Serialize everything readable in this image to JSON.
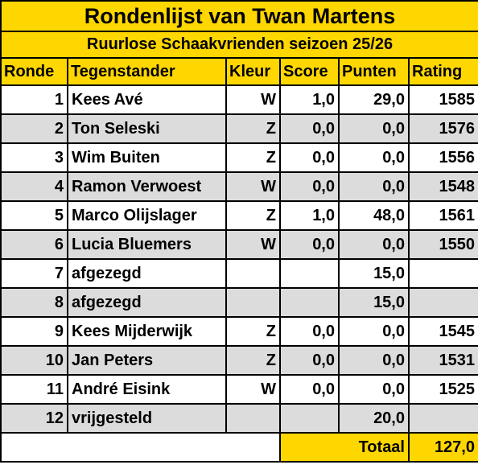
{
  "title": "Rondenlijst van Twan Martens",
  "subtitle": "Ruurlose Schaakvrienden seizoen 25/26",
  "columns": {
    "ronde": "Ronde",
    "tegenstander": "Tegenstander",
    "kleur": "Kleur",
    "score": "Score",
    "punten": "Punten",
    "rating": "Rating"
  },
  "rows": [
    {
      "ronde": "1",
      "tegenstander": "Kees Avé",
      "kleur": "W",
      "score": "1,0",
      "punten": "29,0",
      "rating": "1585"
    },
    {
      "ronde": "2",
      "tegenstander": "Ton Seleski",
      "kleur": "Z",
      "score": "0,0",
      "punten": "0,0",
      "rating": "1576"
    },
    {
      "ronde": "3",
      "tegenstander": "Wim Buiten",
      "kleur": "Z",
      "score": "0,0",
      "punten": "0,0",
      "rating": "1556"
    },
    {
      "ronde": "4",
      "tegenstander": "Ramon Verwoest",
      "kleur": "W",
      "score": "0,0",
      "punten": "0,0",
      "rating": "1548"
    },
    {
      "ronde": "5",
      "tegenstander": "Marco Olijslager",
      "kleur": "Z",
      "score": "1,0",
      "punten": "48,0",
      "rating": "1561"
    },
    {
      "ronde": "6",
      "tegenstander": "Lucia Bluemers",
      "kleur": "W",
      "score": "0,0",
      "punten": "0,0",
      "rating": "1550"
    },
    {
      "ronde": "7",
      "tegenstander": "afgezegd",
      "kleur": "",
      "score": "",
      "punten": "15,0",
      "rating": ""
    },
    {
      "ronde": "8",
      "tegenstander": "afgezegd",
      "kleur": "",
      "score": "",
      "punten": "15,0",
      "rating": ""
    },
    {
      "ronde": "9",
      "tegenstander": "Kees Mijderwijk",
      "kleur": "Z",
      "score": "0,0",
      "punten": "0,0",
      "rating": "1545"
    },
    {
      "ronde": "10",
      "tegenstander": "Jan Peters",
      "kleur": "Z",
      "score": "0,0",
      "punten": "0,0",
      "rating": "1531"
    },
    {
      "ronde": "11",
      "tegenstander": "André Eisink",
      "kleur": "W",
      "score": "0,0",
      "punten": "0,0",
      "rating": "1525"
    },
    {
      "ronde": "12",
      "tegenstander": "vrijgesteld",
      "kleur": "",
      "score": "",
      "punten": "20,0",
      "rating": ""
    }
  ],
  "total": {
    "label": "Totaal",
    "value": "127,0"
  },
  "colors": {
    "header": "#ffd700",
    "alt_row": "#dcdcdc",
    "row": "#ffffff"
  }
}
